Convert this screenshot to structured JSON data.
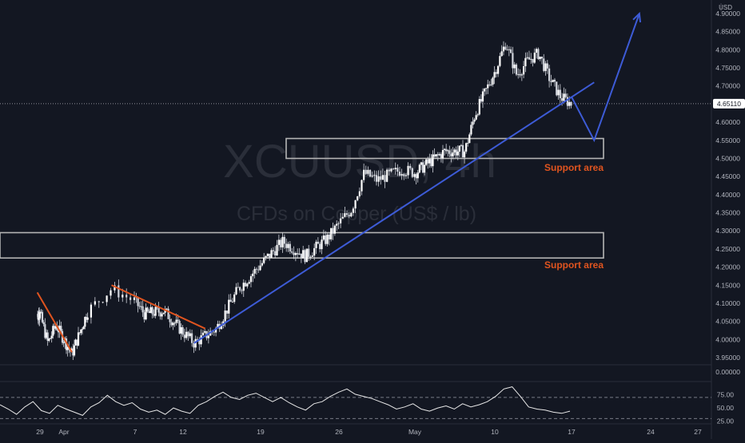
{
  "currency": "USD",
  "watermark": {
    "symbol": "XCUUSD, 4h",
    "description": "CFDs on Copper (US$ / lb)"
  },
  "price_tag": "4.65110",
  "annotations": {
    "support_upper": "Support area",
    "support_lower": "Support area"
  },
  "colors": {
    "background": "#131722",
    "bull": "#ffffff",
    "bear": "#ffffff",
    "trend_red": "#e0541f",
    "trend_blue": "#3d5bd6",
    "support_text": "#e0541f",
    "box": "#b5b5b5",
    "rsi_line": "#e8e8e8",
    "grid_text": "#b2b5be"
  },
  "chart_data": [
    {
      "type": "candlestick",
      "title": "",
      "x_tick_labels": [
        "29",
        "Apr",
        "7",
        "12",
        "19",
        "26",
        "May",
        "10",
        "17",
        "24",
        "27"
      ],
      "y_tick_labels": [
        "4.90000",
        "4.85000",
        "4.80000",
        "4.75000",
        "4.70000",
        "4.65000",
        "4.60000",
        "4.55000",
        "4.50000",
        "4.45000",
        "4.40000",
        "4.35000",
        "4.30000",
        "4.25000",
        "4.20000",
        "4.15000",
        "4.10000",
        "4.05000",
        "4.00000",
        "3.95000"
      ],
      "ylim": [
        3.93,
        4.91
      ],
      "last_price": 4.6511,
      "price_path_approx": [
        {
          "x": "29 Mar",
          "close": 4.07
        },
        {
          "x": "30 Mar",
          "close": 3.99
        },
        {
          "x": "31 Mar",
          "close": 4.04
        },
        {
          "x": "Apr",
          "close": 4.0
        },
        {
          "x": "2 Apr",
          "close": 3.96
        },
        {
          "x": "5 Apr",
          "close": 4.14
        },
        {
          "x": "7 Apr",
          "close": 4.07
        },
        {
          "x": "9 Apr",
          "close": 4.08
        },
        {
          "x": "11 Apr",
          "close": 4.02
        },
        {
          "x": "12 Apr",
          "close": 3.99
        },
        {
          "x": "14 Apr",
          "close": 4.03
        },
        {
          "x": "16 Apr",
          "close": 4.14
        },
        {
          "x": "19 Apr",
          "close": 4.24
        },
        {
          "x": "20 Apr",
          "close": 4.27
        },
        {
          "x": "22 Apr",
          "close": 4.23
        },
        {
          "x": "24 Apr",
          "close": 4.28
        },
        {
          "x": "26 Apr",
          "close": 4.36
        },
        {
          "x": "27 Apr",
          "close": 4.46
        },
        {
          "x": "28 Apr",
          "close": 4.44
        },
        {
          "x": "30 Apr",
          "close": 4.47
        },
        {
          "x": "May",
          "close": 4.46
        },
        {
          "x": "4 May",
          "close": 4.52
        },
        {
          "x": "6 May",
          "close": 4.52
        },
        {
          "x": "7 May",
          "close": 4.62
        },
        {
          "x": "9 May",
          "close": 4.74
        },
        {
          "x": "10 May",
          "close": 4.82
        },
        {
          "x": "11 May",
          "close": 4.73
        },
        {
          "x": "12 May",
          "close": 4.77
        },
        {
          "x": "13 May",
          "close": 4.79
        },
        {
          "x": "14 May",
          "close": 4.72
        },
        {
          "x": "15 May",
          "close": 4.67
        },
        {
          "x": "16 May",
          "close": 4.65
        }
      ],
      "support_zones": [
        {
          "label": "Support area",
          "from": 4.5,
          "to": 4.555
        },
        {
          "label": "Support area",
          "from": 4.225,
          "to": 4.295
        }
      ],
      "trendlines": [
        {
          "color": "red",
          "from": {
            "x": "27 Mar",
            "y": 4.13
          },
          "to": {
            "x": "2 Apr",
            "y": 3.965
          }
        },
        {
          "color": "red",
          "from": {
            "x": "5 Apr",
            "y": 4.15
          },
          "to": {
            "x": "13 Apr",
            "y": 4.03
          }
        },
        {
          "color": "blue",
          "from": {
            "x": "12 Apr",
            "y": 3.99
          },
          "to": {
            "x": "18 May",
            "y": 4.71
          }
        }
      ],
      "projection": [
        {
          "x": "16 May",
          "y": 4.67
        },
        {
          "x": "18 May",
          "y": 4.55
        },
        {
          "x": "22 May",
          "y": 4.9
        }
      ]
    },
    {
      "type": "line",
      "title": "",
      "y_tick_labels": [
        "75.00",
        "50.00",
        "25.00"
      ],
      "ylim": [
        20,
        100
      ],
      "reference_lines": [
        70,
        30
      ],
      "series": [
        {
          "values": [
            56,
            48,
            38,
            52,
            62,
            45,
            40,
            55,
            48,
            42,
            36,
            52,
            60,
            74,
            62,
            55,
            60,
            48,
            42,
            46,
            38,
            50,
            44,
            40,
            55,
            62,
            72,
            80,
            70,
            66,
            74,
            78,
            70,
            62,
            70,
            60,
            52,
            46,
            58,
            62,
            72,
            80,
            86,
            76,
            72,
            68,
            62,
            56,
            48,
            52,
            58,
            48,
            44,
            50,
            54,
            48,
            58,
            52,
            56,
            62,
            72,
            86,
            90,
            72,
            52,
            48,
            46,
            42,
            40,
            44
          ]
        }
      ],
      "extra_tick_label": "0.00000"
    }
  ]
}
